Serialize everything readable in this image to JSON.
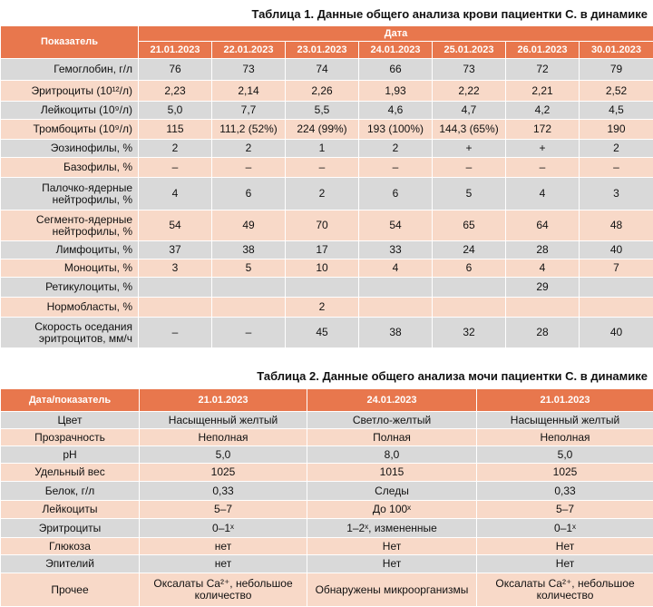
{
  "table1": {
    "caption": "Таблица 1. Данные общего анализа крови пациентки С. в динамике",
    "header_param": "Показатель",
    "header_date": "Дата",
    "dates": [
      "21.01.2023",
      "22.01.2023",
      "23.01.2023",
      "24.01.2023",
      "25.01.2023",
      "26.01.2023",
      "30.01.2023"
    ],
    "rows": [
      {
        "label": "Гемоглобин, г/л",
        "values": [
          "76",
          "73",
          "74",
          "66",
          "73",
          "72",
          "79"
        ]
      },
      {
        "label": "Эритроциты (10¹²/л)",
        "values": [
          "2,23",
          "2,14",
          "2,26",
          "1,93",
          "2,22",
          "2,21",
          "2,52"
        ]
      },
      {
        "label": "Лейкоциты (10⁹/л)",
        "values": [
          "5,0",
          "7,7",
          "5,5",
          "4,6",
          "4,7",
          "4,2",
          "4,5"
        ]
      },
      {
        "label": "Тромбоциты (10⁹/л)",
        "values": [
          "115",
          "111,2 (52%)",
          "224 (99%)",
          "193 (100%)",
          "144,3 (65%)",
          "172",
          "190"
        ]
      },
      {
        "label": "Эозинофилы, %",
        "values": [
          "2",
          "2",
          "1",
          "2",
          "+",
          "+",
          "2"
        ]
      },
      {
        "label": "Базофилы, %",
        "values": [
          "–",
          "–",
          "–",
          "–",
          "–",
          "–",
          "–"
        ]
      },
      {
        "label": "Палочко-ядерные\nнейтрофилы, %",
        "values": [
          "4",
          "6",
          "2",
          "6",
          "5",
          "4",
          "3"
        ]
      },
      {
        "label": "Сегменто-ядерные\nнейтрофилы, %",
        "values": [
          "54",
          "49",
          "70",
          "54",
          "65",
          "64",
          "48"
        ]
      },
      {
        "label": "Лимфоциты, %",
        "values": [
          "37",
          "38",
          "17",
          "33",
          "24",
          "28",
          "40"
        ]
      },
      {
        "label": "Моноциты, %",
        "values": [
          "3",
          "5",
          "10",
          "4",
          "6",
          "4",
          "7"
        ]
      },
      {
        "label": "Ретикулоциты, %",
        "values": [
          "",
          "",
          "",
          "",
          "",
          "29",
          ""
        ]
      },
      {
        "label": "Нормобласты, %",
        "values": [
          "",
          "",
          "2",
          "",
          "",
          "",
          ""
        ]
      },
      {
        "label": "Скорость оседания\nэритроцитов, мм/ч",
        "values": [
          "–",
          "–",
          "45",
          "38",
          "32",
          "28",
          "40"
        ]
      }
    ]
  },
  "table2": {
    "caption": "Таблица 2. Данные общего анализа мочи пациентки С. в динамике",
    "header_param": "Дата/показатель",
    "dates": [
      "21.01.2023",
      "24.01.2023",
      "21.01.2023"
    ],
    "rows": [
      {
        "label": "Цвет",
        "values": [
          "Насыщенный желтый",
          "Светло-желтый",
          "Насыщенный желтый"
        ]
      },
      {
        "label": "Прозрачность",
        "values": [
          "Неполная",
          "Полная",
          "Неполная"
        ]
      },
      {
        "label": "pH",
        "values": [
          "5,0",
          "8,0",
          "5,0"
        ]
      },
      {
        "label": "Удельный вес",
        "values": [
          "1025",
          "1015",
          "1025"
        ]
      },
      {
        "label": "Белок, г/л",
        "values": [
          "0,33",
          "Следы",
          "0,33"
        ]
      },
      {
        "label": "Лейкоциты",
        "values": [
          "5–7",
          "До 100ˣ",
          "5–7"
        ]
      },
      {
        "label": "Эритроциты",
        "values": [
          "0–1ˣ",
          "1–2ˣ, измененные",
          "0–1ˣ"
        ]
      },
      {
        "label": "Глюкоза",
        "values": [
          "нет",
          "Нет",
          "Нет"
        ]
      },
      {
        "label": "Эпителий",
        "values": [
          "нет",
          "Нет",
          "Нет"
        ]
      },
      {
        "label": "Прочее",
        "values": [
          "Оксалаты Ca²⁺, небольшое\nколичество",
          "Обнаружены микроорганизмы",
          "Оксалаты Ca²⁺, небольшое\nколичество"
        ]
      }
    ]
  }
}
